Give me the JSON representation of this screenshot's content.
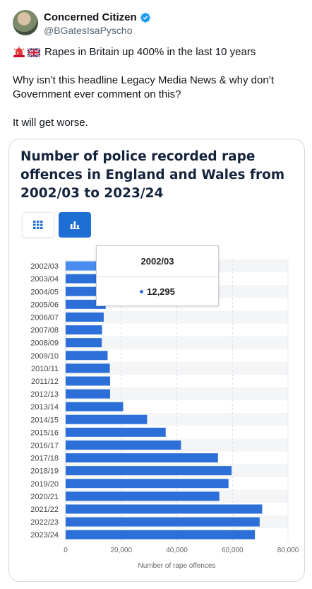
{
  "tweet": {
    "display_name": "Concerned Citizen",
    "handle": "@BGatesIsaPyscho",
    "line1": "Rapes in Britain up 400% in the last 10 years",
    "line2": "Why isn’t this headline Legacy Media News & why don’t Government ever comment on  this?",
    "line3": "It will get worse.",
    "icons": [
      "siren-emoji",
      "uk-flag-emoji",
      "verified-badge-icon"
    ],
    "verified_color": "#1d9bf0"
  },
  "chart": {
    "view_buttons": [
      {
        "name": "table-view",
        "icon": "grid-icon",
        "active": false
      },
      {
        "name": "bar-view",
        "icon": "bar-chart-icon",
        "active": true
      }
    ],
    "tooltip": {
      "title": "2002/03",
      "value": "12,295"
    }
  },
  "chart_data": {
    "type": "bar",
    "orientation": "horizontal",
    "title": "Number of police recorded rape offences in England and Wales from 2002/03 to 2023/24",
    "xlabel": "Number of rape offences",
    "ylabel": "",
    "xlim": [
      0,
      80000
    ],
    "x_ticks": [
      0,
      20000,
      40000,
      60000,
      80000
    ],
    "x_tick_labels": [
      "0",
      "20,000",
      "40,000",
      "60,000",
      "80,000"
    ],
    "grid": true,
    "bar_color": "#2d6fd8",
    "highlight_color": "#4a8df0",
    "categories": [
      "2002/03",
      "2003/04",
      "2004/05",
      "2005/06",
      "2006/07",
      "2007/08",
      "2008/09",
      "2009/10",
      "2010/11",
      "2011/12",
      "2012/13",
      "2013/14",
      "2014/15",
      "2015/16",
      "2016/17",
      "2017/18",
      "2018/19",
      "2019/20",
      "2020/21",
      "2021/22",
      "2022/23",
      "2023/24"
    ],
    "values": [
      12295,
      13300,
      12900,
      14400,
      13700,
      13100,
      13000,
      15100,
      15900,
      16000,
      16000,
      20700,
      29300,
      36000,
      41500,
      54800,
      59700,
      58600,
      55300,
      70700,
      69800,
      68100
    ]
  }
}
